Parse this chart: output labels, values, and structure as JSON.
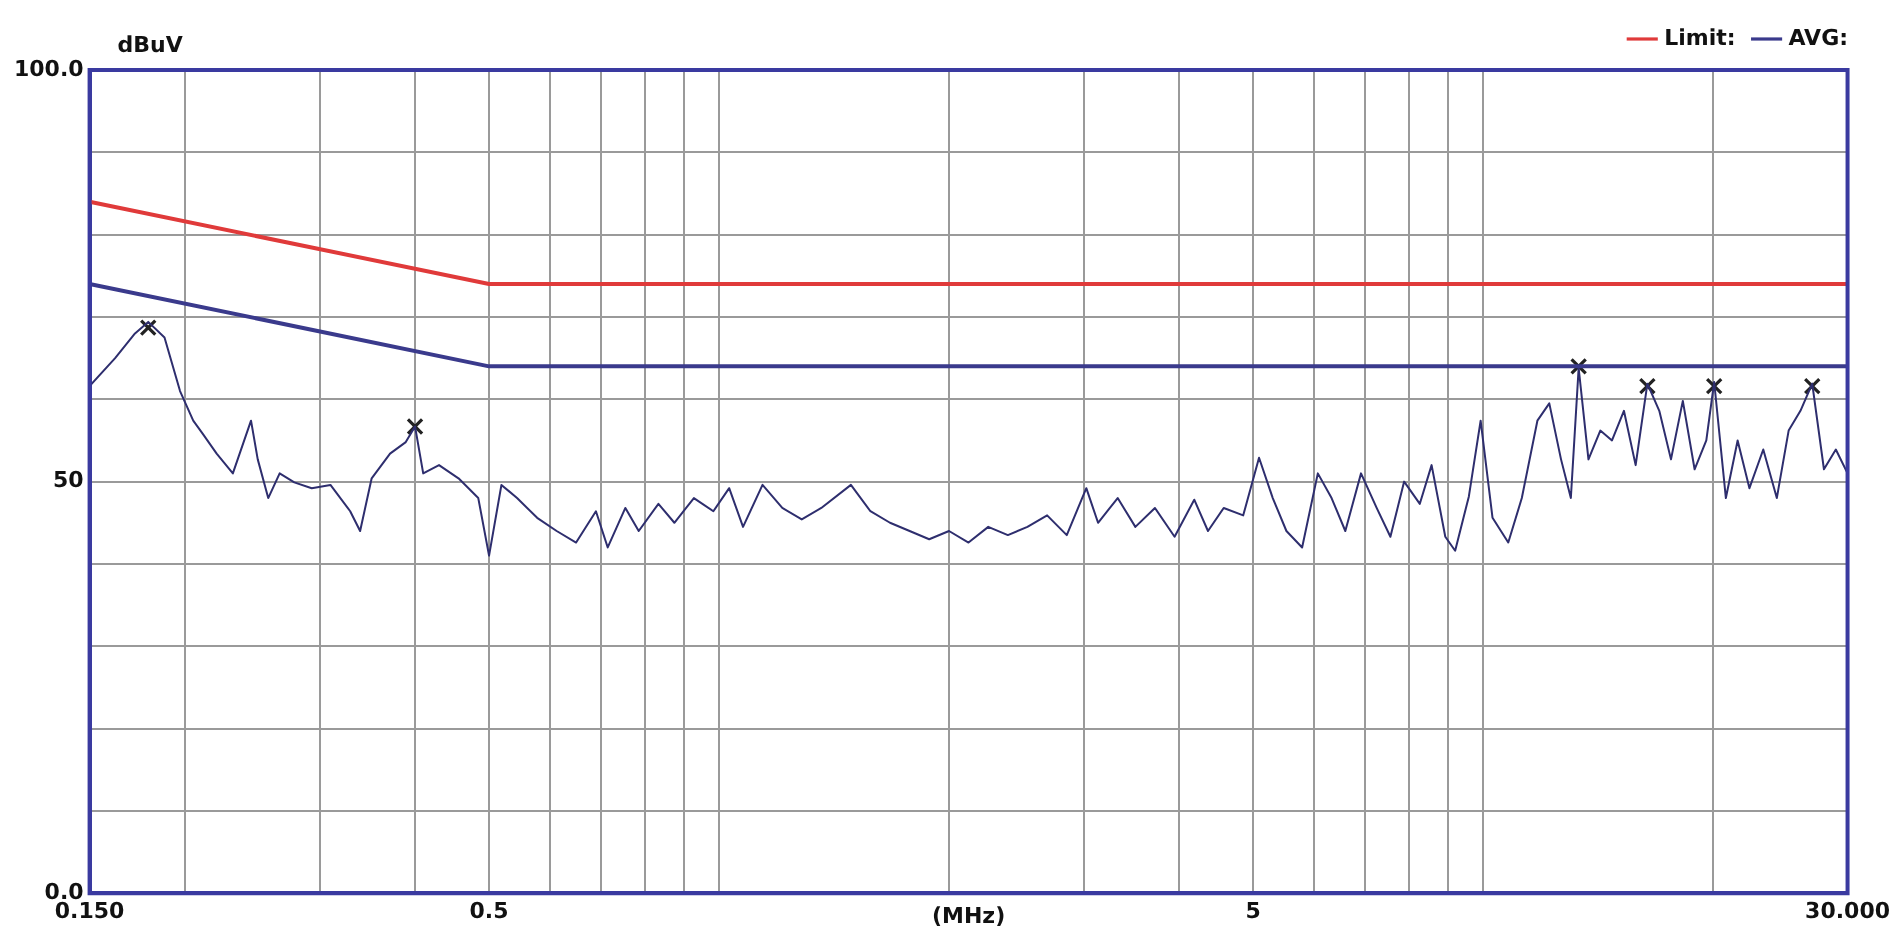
{
  "chart_data": {
    "type": "line",
    "ylabel": "dBuV",
    "xlabel": "(MHz)",
    "log": "x",
    "grid": true,
    "legend": "top right",
    "marker": "none",
    "line_style": "solid",
    "xlim": [
      0.15,
      30
    ],
    "xticks": [
      {
        "value": 0.15,
        "label": "0.150"
      },
      {
        "value": 0.2,
        "label": null
      },
      {
        "value": 0.3,
        "label": null
      },
      {
        "value": 0.4,
        "label": null
      },
      0.5,
      {
        "value": 0.6,
        "label": null
      },
      {
        "value": 0.7,
        "label": null
      },
      {
        "value": 0.8,
        "label": null
      },
      {
        "value": 0.9,
        "label": null
      },
      {
        "value": 1,
        "label": null
      },
      {
        "value": 2,
        "label": null
      },
      {
        "value": 3,
        "label": null
      },
      {
        "value": 4,
        "label": null
      },
      5,
      {
        "value": 6,
        "label": null
      },
      {
        "value": 7,
        "label": null
      },
      {
        "value": 8,
        "label": null
      },
      {
        "value": 9,
        "label": null
      },
      {
        "value": 10,
        "label": null
      },
      {
        "value": 20,
        "label": null
      },
      {
        "value": 30,
        "label": "30.000"
      }
    ],
    "ylim": [
      0,
      100
    ],
    "yticks": [
      {
        "value": 0,
        "label": "0.0"
      },
      {
        "value": 10,
        "label": null
      },
      {
        "value": 20,
        "label": null
      },
      {
        "value": 30,
        "label": null
      },
      {
        "value": 40,
        "label": null
      },
      50,
      {
        "value": 60,
        "label": null
      },
      {
        "value": 70,
        "label": null
      },
      {
        "value": 80,
        "label": null
      },
      {
        "value": 90,
        "label": null
      },
      {
        "value": 100,
        "label": "100.0"
      }
    ],
    "series": [
      {
        "name": "Limit:",
        "color": "#e03a3a",
        "x": [
          0.15,
          0.5,
          30
        ],
        "values": [
          84,
          74,
          74
        ]
      },
      {
        "name": "AVG:",
        "color": "#3a3a8c",
        "x": [
          0.15,
          0.5,
          30
        ],
        "values": [
          74,
          64,
          64
        ]
      },
      {
        "color": "#2e2e6e",
        "x": [
          0.15,
          0.162,
          0.172,
          0.179,
          0.188,
          0.197,
          0.205,
          0.211,
          0.22,
          0.231,
          0.244,
          0.249,
          0.257,
          0.266,
          0.278,
          0.293,
          0.31,
          0.329,
          0.339,
          0.351,
          0.371,
          0.389,
          0.4,
          0.41,
          0.43,
          0.456,
          0.484,
          0.5,
          0.519,
          0.544,
          0.578,
          0.613,
          0.65,
          0.69,
          0.715,
          0.754,
          0.785,
          0.833,
          0.874,
          0.927,
          0.983,
          1.031,
          1.075,
          1.14,
          1.21,
          1.283,
          1.361,
          1.488,
          1.578,
          1.674,
          1.776,
          1.884,
          2.0,
          2.121,
          2.251,
          2.388,
          2.533,
          2.688,
          2.852,
          3.025,
          3.134,
          3.325,
          3.507,
          3.72,
          3.947,
          4.188,
          4.365,
          4.577,
          4.854,
          5.091,
          5.306,
          5.529,
          5.797,
          6.078,
          6.335,
          6.603,
          6.923,
          7.257,
          7.564,
          7.884,
          8.265,
          8.564,
          8.925,
          9.194,
          9.582,
          9.928,
          10.29,
          10.79,
          11.24,
          11.78,
          12.21,
          12.65,
          13.03,
          13.34,
          13.74,
          14.24,
          14.75,
          15.29,
          15.84,
          16.41,
          17.01,
          17.62,
          18.26,
          18.92,
          19.6,
          20.07,
          20.79,
          21.54,
          22.32,
          23.27,
          24.24,
          25.12,
          26.03,
          26.97,
          27.94,
          28.96,
          30
        ],
        "values": [
          61.6,
          65,
          68,
          69.4,
          67.5,
          61,
          57.4,
          55.8,
          53.4,
          51,
          57.4,
          52.7,
          48,
          51,
          49.9,
          49.2,
          49.6,
          46.4,
          44,
          50.4,
          53.4,
          54.8,
          56.7,
          51,
          52,
          50.4,
          48,
          41,
          49.6,
          48,
          45.6,
          44,
          42.6,
          46.4,
          42,
          46.8,
          44,
          47.3,
          45,
          48,
          46.4,
          49.2,
          44.5,
          49.6,
          46.8,
          45.4,
          46.8,
          49.6,
          46.4,
          45,
          44,
          43,
          44,
          42.6,
          44.5,
          43.5,
          44.5,
          45.9,
          43.5,
          49.2,
          45,
          48,
          44.5,
          46.8,
          43.3,
          47.8,
          44,
          46.8,
          45.9,
          52.9,
          48,
          44,
          42,
          51,
          48,
          44,
          51,
          46.8,
          43.3,
          50,
          47.3,
          52,
          43.3,
          41.6,
          48.2,
          57.4,
          45.6,
          42.6,
          48,
          57.4,
          59.5,
          52.7,
          48,
          63.8,
          52.7,
          56.2,
          55,
          58.6,
          52,
          61.9,
          58.6,
          52.7,
          59.8,
          51.5,
          55,
          62.1,
          48,
          55,
          49.2,
          53.9,
          48,
          56.2,
          58.6,
          61.9,
          51.5,
          53.9,
          51
        ]
      },
      {
        "type": "scatter",
        "marker": "cross",
        "color": "#222222",
        "x": [
          0.179,
          0.4,
          13.34,
          16.41,
          20.07,
          26.97
        ],
        "values": [
          68.7,
          56.7,
          64,
          61.6,
          61.6,
          61.6
        ]
      }
    ]
  }
}
